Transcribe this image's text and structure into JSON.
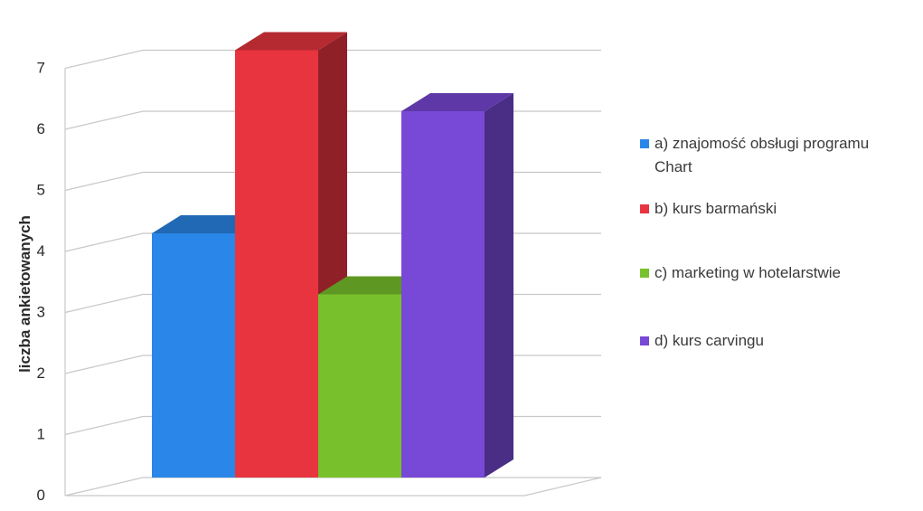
{
  "chart_data": {
    "type": "bar",
    "title": "",
    "xlabel": "",
    "ylabel": "liczba ankietowanych",
    "ylim": [
      0,
      7
    ],
    "yticks": [
      "0",
      "1",
      "2",
      "3",
      "4",
      "5",
      "6",
      "7"
    ],
    "grid": true,
    "legend_position": "right",
    "series": [
      {
        "name": "a) znajomość obsługi programu Chart",
        "value": 4,
        "color": "#2a86e8"
      },
      {
        "name": "b) kurs barmański",
        "value": 7,
        "color": "#e8343f"
      },
      {
        "name": "c) marketing w hotelarstwie",
        "value": 3,
        "color": "#79c12c"
      },
      {
        "name": "d) kurs carvingu",
        "value": 6,
        "color": "#7848d6"
      }
    ]
  },
  "legend": {
    "a_line1": "a) znajomość obsługi programu",
    "a_line2": "Chart",
    "b": "b) kurs barmański",
    "c": "c) marketing w hotelarstwie",
    "d": "d) kurs carvingu"
  }
}
